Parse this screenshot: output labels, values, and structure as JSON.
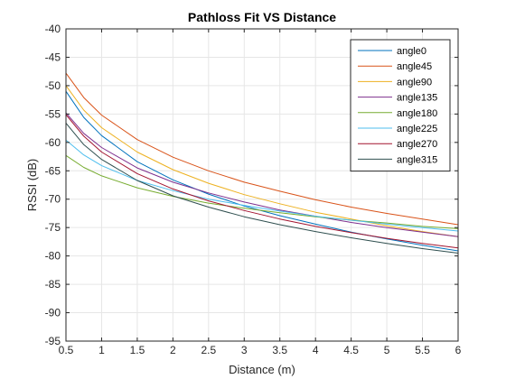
{
  "chart_data": {
    "type": "line",
    "title": "Pathloss Fit VS Distance",
    "xlabel": "Distance (m)",
    "ylabel": "RSSI (dB)",
    "xlim": [
      0.5,
      6
    ],
    "ylim": [
      -95,
      -40
    ],
    "xticks": [
      0.5,
      1,
      1.5,
      2,
      2.5,
      3,
      3.5,
      4,
      4.5,
      5,
      5.5,
      6
    ],
    "xtick_labels": [
      "0.5",
      "1",
      "1.5",
      "2",
      "2.5",
      "3",
      "3.5",
      "4",
      "4.5",
      "5",
      "5.5",
      "6"
    ],
    "yticks": [
      -95,
      -90,
      -85,
      -80,
      -75,
      -70,
      -65,
      -60,
      -55,
      -50,
      -45,
      -40
    ],
    "ytick_labels": [
      "-95",
      "-90",
      "-85",
      "-80",
      "-75",
      "-70",
      "-65",
      "-60",
      "-55",
      "-50",
      "-45",
      "-40"
    ],
    "grid": true,
    "legend_position": "top-right",
    "x": [
      0.5,
      0.75,
      1,
      1.5,
      2,
      2.5,
      3,
      3.5,
      4,
      4.5,
      5,
      5.5,
      6
    ],
    "series": [
      {
        "name": "angle0",
        "color": "#0072BD",
        "values": [
          -51.0,
          -55.6,
          -58.8,
          -63.4,
          -66.6,
          -69.1,
          -71.2,
          -72.9,
          -74.4,
          -75.8,
          -77.0,
          -78.1,
          -79.1
        ]
      },
      {
        "name": "angle45",
        "color": "#D95319",
        "values": [
          -47.8,
          -52.1,
          -55.2,
          -59.5,
          -62.6,
          -65.0,
          -67.0,
          -68.6,
          -70.1,
          -71.4,
          -72.5,
          -73.5,
          -74.5
        ]
      },
      {
        "name": "angle90",
        "color": "#EDB120",
        "values": [
          -50.0,
          -54.3,
          -57.4,
          -61.7,
          -64.8,
          -67.2,
          -69.2,
          -70.8,
          -72.3,
          -73.5,
          -74.7,
          -75.7,
          -76.6
        ]
      },
      {
        "name": "angle135",
        "color": "#7E2F8E",
        "values": [
          -54.8,
          -58.4,
          -60.9,
          -64.5,
          -67.0,
          -68.9,
          -70.5,
          -71.9,
          -73.0,
          -74.1,
          -75.0,
          -75.8,
          -76.6
        ]
      },
      {
        "name": "angle180",
        "color": "#77AC30",
        "values": [
          -62.3,
          -64.4,
          -65.9,
          -68.0,
          -69.5,
          -70.7,
          -71.6,
          -72.4,
          -73.1,
          -73.7,
          -74.2,
          -74.8,
          -75.2
        ]
      },
      {
        "name": "angle225",
        "color": "#4DBEEE",
        "values": [
          -59.6,
          -62.2,
          -64.1,
          -66.7,
          -68.5,
          -70.0,
          -71.1,
          -72.1,
          -73.0,
          -73.7,
          -74.4,
          -75.0,
          -75.6
        ]
      },
      {
        "name": "angle270",
        "color": "#A2142F",
        "values": [
          -55.1,
          -58.9,
          -61.7,
          -65.5,
          -68.2,
          -70.3,
          -72.0,
          -73.5,
          -74.8,
          -75.9,
          -76.9,
          -77.8,
          -78.6
        ]
      },
      {
        "name": "angle315",
        "color": "#2F4F4F",
        "values": [
          -56.6,
          -60.4,
          -63.0,
          -66.7,
          -69.4,
          -71.4,
          -73.1,
          -74.5,
          -75.7,
          -76.8,
          -77.8,
          -78.7,
          -79.5
        ]
      }
    ]
  }
}
